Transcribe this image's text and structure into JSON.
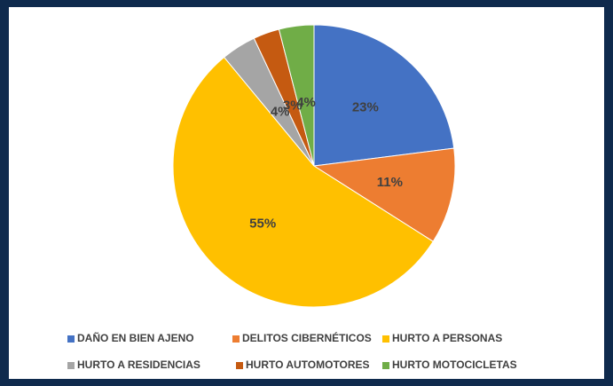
{
  "chart_data": {
    "type": "pie",
    "categories": [
      "DAÑO EN BIEN AJENO",
      "DELITOS CIBERNÉTICOS",
      "HURTO A PERSONAS",
      "HURTO A RESIDENCIAS",
      "HURTO AUTOMOTORES",
      "HURTO MOTOCICLETAS"
    ],
    "values": [
      23,
      11,
      55,
      4,
      3,
      4
    ],
    "value_labels": [
      "23%",
      "11%",
      "55%",
      "4%",
      "3%",
      "4%"
    ],
    "colors": [
      "#4472c4",
      "#ed7d31",
      "#ffc000",
      "#a5a5a5",
      "#c55a11",
      "#70ad47"
    ],
    "legend": "bottom"
  }
}
